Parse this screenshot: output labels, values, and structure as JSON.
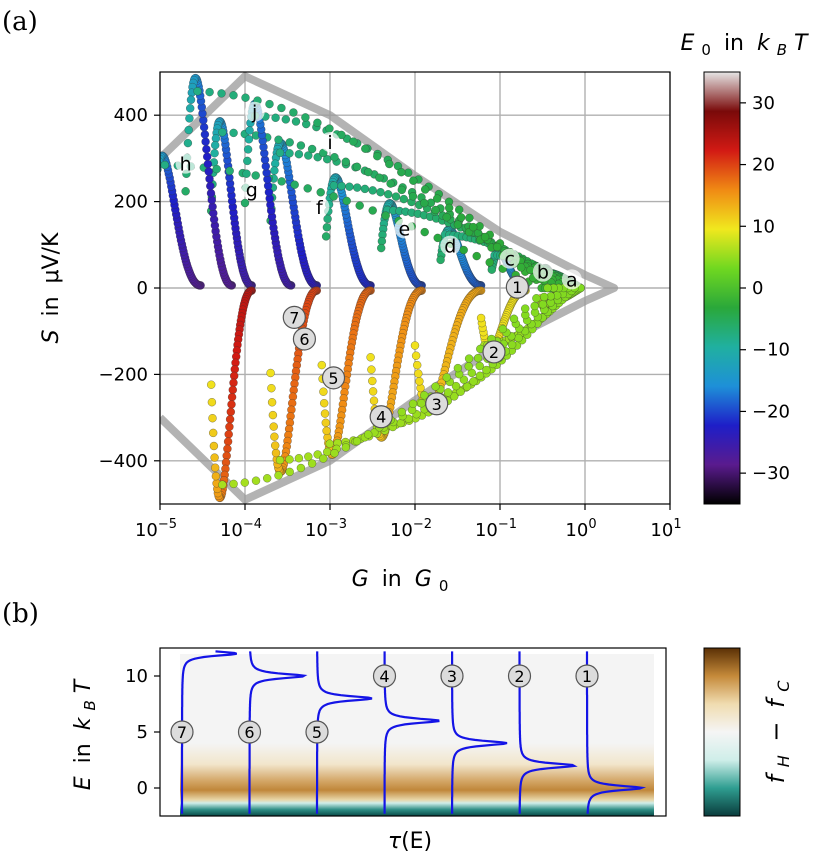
{
  "chart_data": [
    {
      "type": "scatter",
      "panel_label": "(a)",
      "xlabel_main": "G",
      "xlabel_word": "in",
      "xlabel_unit": "G",
      "xlabel_unit_sub": "0",
      "ylabel_main": "S",
      "ylabel_word": "in",
      "ylabel_unit": "μV/K",
      "xscale": "log",
      "xlim": [
        1e-05,
        10
      ],
      "ylim": [
        -500,
        500
      ],
      "x_ticks": [
        {
          "base": "10",
          "exp": "−5",
          "value": 1e-05
        },
        {
          "base": "10",
          "exp": "−4",
          "value": 0.0001
        },
        {
          "base": "10",
          "exp": "−3",
          "value": 0.001
        },
        {
          "base": "10",
          "exp": "−2",
          "value": 0.01
        },
        {
          "base": "10",
          "exp": "−1",
          "value": 0.1
        },
        {
          "base": "10",
          "exp": "0",
          "value": 1
        },
        {
          "base": "10",
          "exp": "1",
          "value": 10
        }
      ],
      "y_ticks": [
        {
          "label": "400",
          "value": 400
        },
        {
          "label": "200",
          "value": 200
        },
        {
          "label": "0",
          "value": 0
        },
        {
          "label": "−200",
          "value": -200
        },
        {
          "label": "−400",
          "value": -400
        }
      ],
      "grid": true,
      "colorbar": {
        "title_main": "E",
        "title_sub": "0",
        "title_word": "in",
        "title_unit": "k",
        "title_unit_sub": "B",
        "title_tail": "T",
        "range": [
          -35,
          35
        ],
        "ticks": [
          "30",
          "20",
          "10",
          "0",
          "−10",
          "−20",
          "−30"
        ],
        "tick_values": [
          30,
          20,
          10,
          0,
          -10,
          -20,
          -30
        ],
        "stops": [
          "#000000",
          "#5a1b8e",
          "#1e1ec8",
          "#1e90d8",
          "#20b0a0",
          "#2aa83a",
          "#70d820",
          "#f0e81e",
          "#f08a14",
          "#d21a14",
          "#7a0a0a",
          "#e6e6e6"
        ]
      },
      "envelope": {
        "x": [
          1e-05,
          0.0001,
          0.001,
          0.01,
          0.1,
          1,
          2.2
        ],
        "y_upper": [
          300,
          490,
          400,
          260,
          130,
          30,
          0
        ]
      },
      "positive_series": [
        {
          "label": "a",
          "x0": 0.3,
          "e0": -5,
          "start_x": 0.55,
          "peak_s": 40,
          "label_x": 0.7,
          "label_s": 20
        },
        {
          "label": "b",
          "x0": 0.08,
          "e0": -18,
          "start_x": 0.2,
          "peak_s": 80,
          "label_x": 0.32,
          "label_s": 38
        },
        {
          "label": "c",
          "x0": 0.02,
          "e0": -19,
          "start_x": 0.06,
          "peak_s": 130,
          "label_x": 0.13,
          "label_s": 68
        },
        {
          "label": "d",
          "x0": 0.004,
          "e0": -20,
          "start_x": 0.012,
          "peak_s": 190,
          "label_x": 0.026,
          "label_s": 98
        },
        {
          "label": "e",
          "x0": 0.0009,
          "e0": -22,
          "start_x": 0.003,
          "peak_s": 250,
          "label_x": 0.0075,
          "label_s": 138
        },
        {
          "label": "f",
          "x0": 0.0002,
          "e0": -24,
          "start_x": 0.0007,
          "peak_s": 330,
          "label_x": 0.00075,
          "label_s": 188
        },
        {
          "label": "g",
          "x0": 4e-05,
          "e0": -26,
          "start_x": 0.00012,
          "peak_s": 380,
          "label_x": 0.00012,
          "label_s": 228
        },
        {
          "label": "h",
          "x0": 8e-06,
          "e0": -28,
          "start_x": 3e-05,
          "peak_s": 300,
          "label_x": 2e-05,
          "label_s": 288
        },
        {
          "label": "i",
          "x0": 0.0001,
          "e0": -26,
          "start_x": 0.00035,
          "peak_s": 420,
          "label_x": 0.001,
          "label_s": 338
        },
        {
          "label": "j",
          "x0": 2e-05,
          "e0": -28,
          "start_x": 7e-05,
          "peak_s": 480,
          "label_x": 0.00013,
          "label_s": 408
        }
      ],
      "negative_series": [
        {
          "label": "1",
          "x0": 0.3,
          "e0": 5,
          "start_x": 0.55,
          "peak_s": -40,
          "label_x": 0.16,
          "label_s": 2
        },
        {
          "label": "2",
          "x0": 0.06,
          "e0": 10,
          "start_x": 0.2,
          "peak_s": -140,
          "label_x": 0.085,
          "label_s": -148
        },
        {
          "label": "3",
          "x0": 0.01,
          "e0": 14,
          "start_x": 0.06,
          "peak_s": -280,
          "label_x": 0.018,
          "label_s": -268
        },
        {
          "label": "4",
          "x0": 0.003,
          "e0": 16,
          "start_x": 0.012,
          "peak_s": -340,
          "label_x": 0.004,
          "label_s": -298
        },
        {
          "label": "5",
          "x0": 0.0008,
          "e0": 18,
          "start_x": 0.003,
          "peak_s": -380,
          "label_x": 0.0011,
          "label_s": -208
        },
        {
          "label": "6",
          "x0": 0.0002,
          "e0": 20,
          "start_x": 0.0007,
          "peak_s": -420,
          "label_x": 0.0005,
          "label_s": -118
        },
        {
          "label": "7",
          "x0": 4e-05,
          "e0": 24,
          "start_x": 0.00012,
          "peak_s": -480,
          "label_x": 0.00038,
          "label_s": -68
        }
      ]
    },
    {
      "type": "heatmap",
      "panel_label": "(b)",
      "xlabel_main": "τ",
      "xlabel_arg": "(E)",
      "ylabel_main": "E",
      "ylabel_word": "in",
      "ylabel_unit": "k",
      "ylabel_unit_sub": "B",
      "ylabel_tail": "T",
      "ylim": [
        -2.5,
        12.5
      ],
      "y_ticks": [
        {
          "label": "10",
          "value": 10
        },
        {
          "label": "5",
          "value": 5
        },
        {
          "label": "0",
          "value": 0
        }
      ],
      "colorbar": {
        "title_main": "f",
        "title_sub_h": "H",
        "title_minus": "−",
        "title_main2": "f",
        "title_sub_c": "C",
        "stops": [
          "#0a3c3c",
          "#2f9e91",
          "#cfeee9",
          "#f5f5f5",
          "#f0dcb0",
          "#c58a3a",
          "#5a3005"
        ]
      },
      "transmission_peaks": [
        {
          "label": "1",
          "energy": 0,
          "column": 6,
          "label_y": 10
        },
        {
          "label": "2",
          "energy": 2,
          "column": 5,
          "label_y": 10
        },
        {
          "label": "3",
          "energy": 4,
          "column": 4,
          "label_y": 10
        },
        {
          "label": "4",
          "energy": 6,
          "column": 3,
          "label_y": 10
        },
        {
          "label": "5",
          "energy": 8,
          "column": 2,
          "label_y": 5
        },
        {
          "label": "6",
          "energy": 10,
          "column": 1,
          "label_y": 5
        },
        {
          "label": "7",
          "energy": 12,
          "column": 0,
          "label_y": 5
        }
      ]
    }
  ]
}
